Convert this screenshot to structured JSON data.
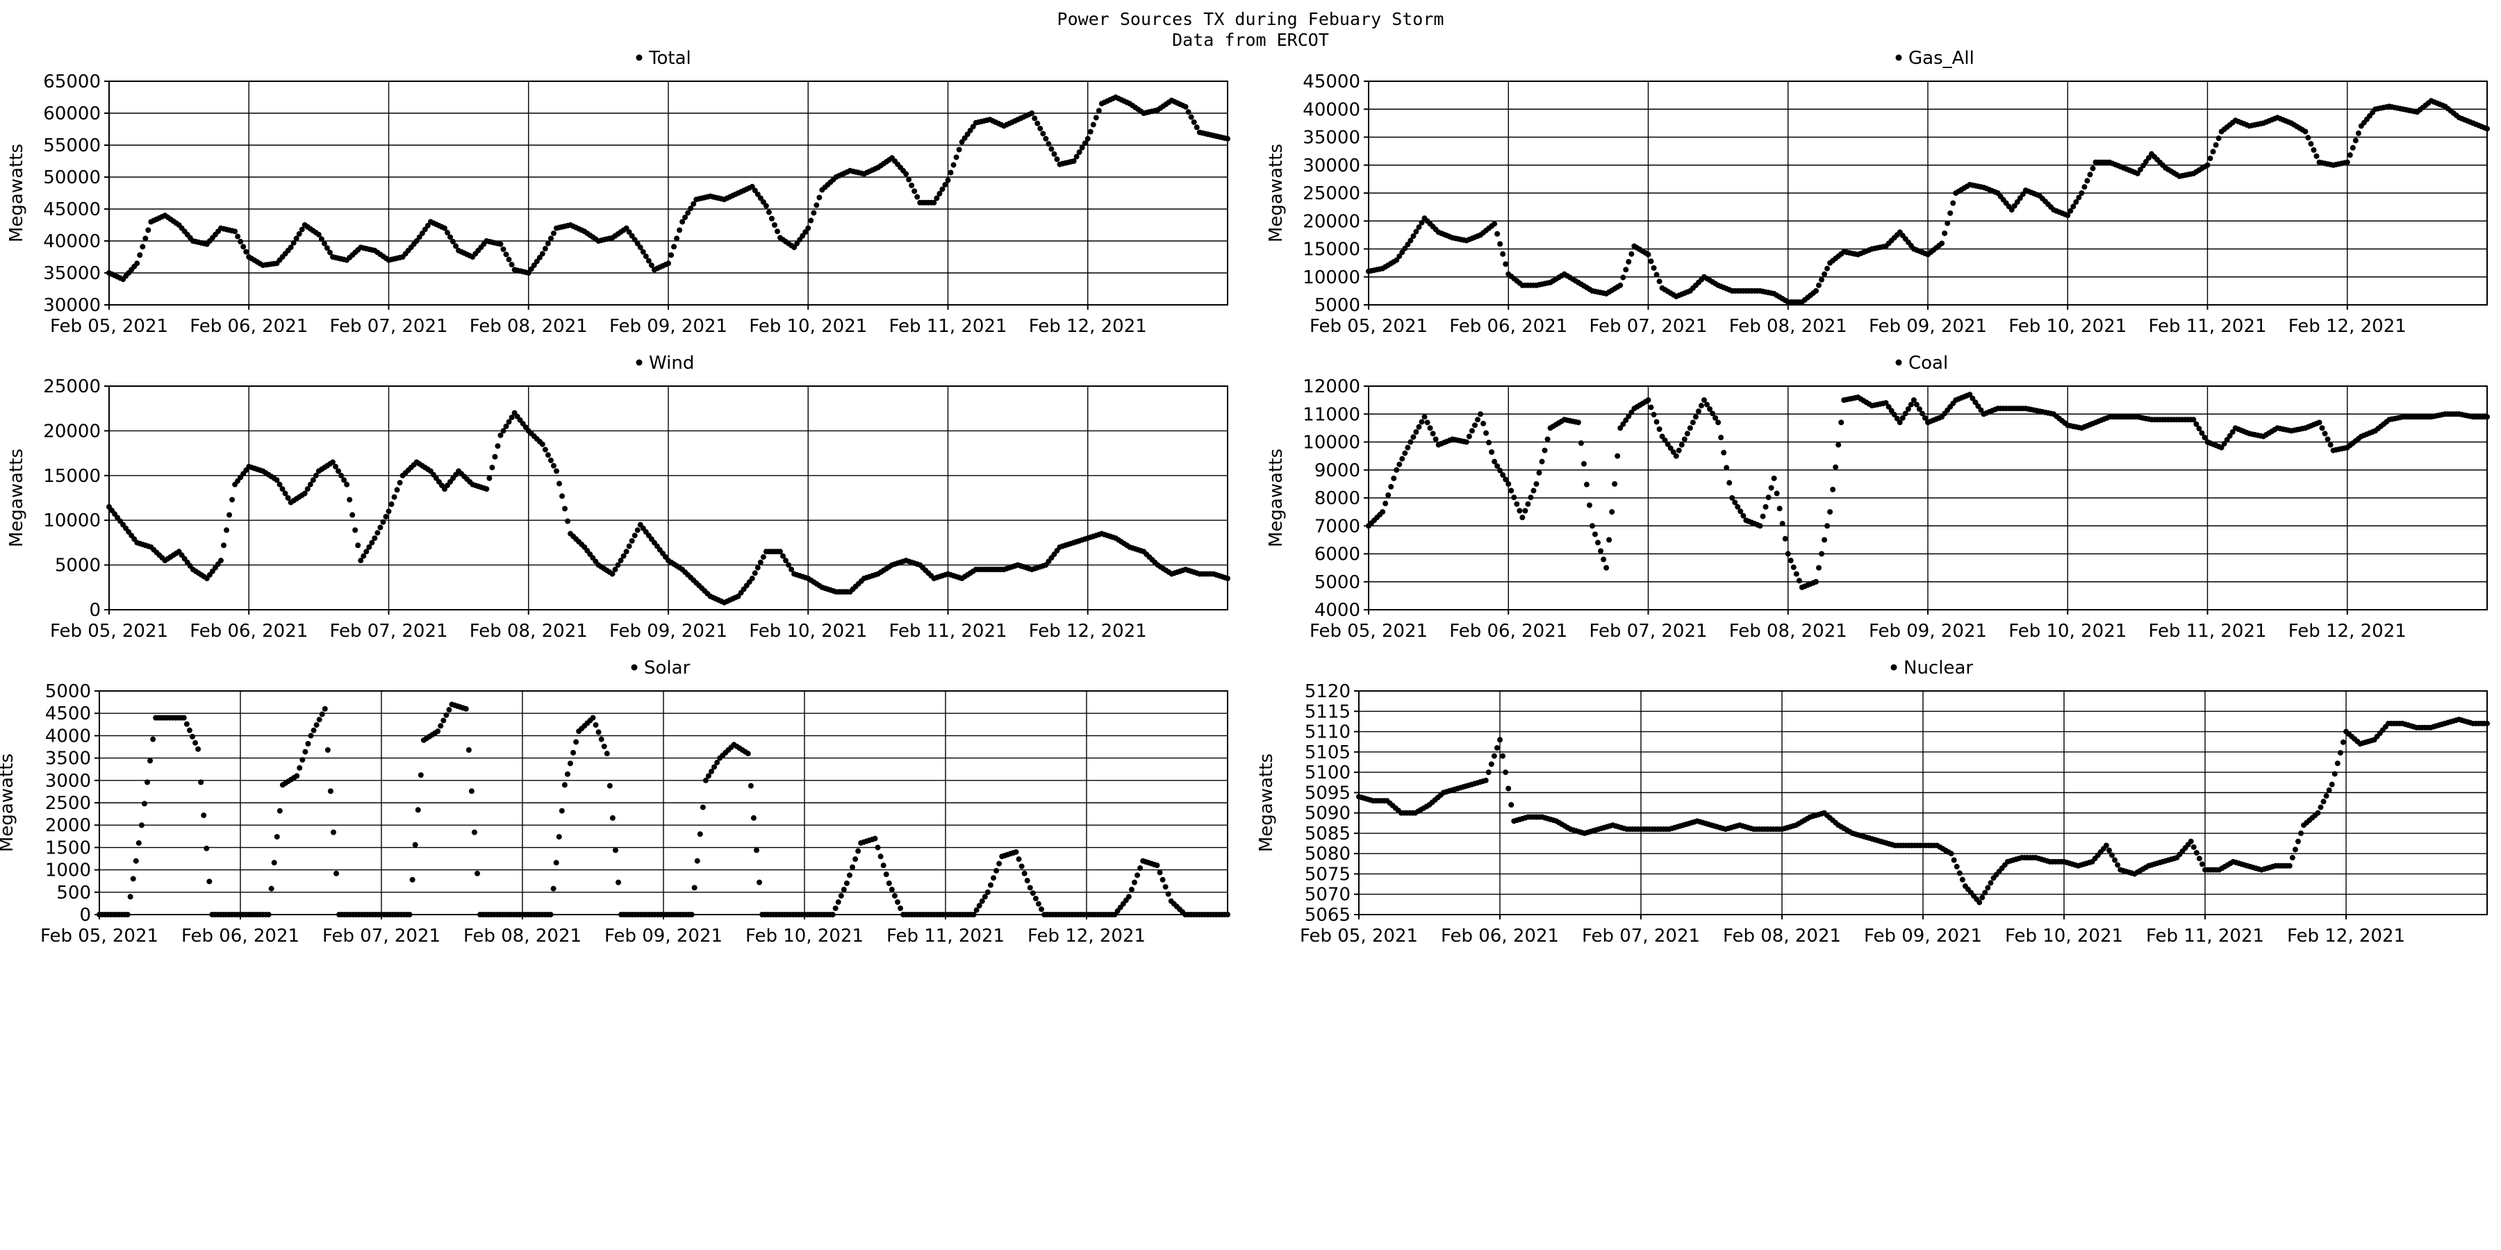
{
  "figure": {
    "title": "Power Sources TX during Febuary Storm",
    "subtitle": "Data from ERCOT"
  },
  "chart_data": [
    {
      "type": "scatter",
      "title": "Total",
      "legend": "Total",
      "ylabel": "Megawatts",
      "ylim": [
        30000,
        65000
      ],
      "yticks": [
        30000,
        35000,
        40000,
        45000,
        50000,
        55000,
        60000,
        65000
      ],
      "xlim": [
        0,
        8
      ],
      "xticks": [
        "Feb 05, 2021",
        "Feb 06, 2021",
        "Feb 07, 2021",
        "Feb 08, 2021",
        "Feb 09, 2021",
        "Feb 10, 2021",
        "Feb 11, 2021",
        "Feb 12, 2021"
      ],
      "grid": true,
      "x": [
        0,
        0.1,
        0.2,
        0.3,
        0.4,
        0.5,
        0.6,
        0.7,
        0.8,
        0.9,
        1.0,
        1.1,
        1.2,
        1.3,
        1.4,
        1.5,
        1.6,
        1.7,
        1.8,
        1.9,
        2.0,
        2.1,
        2.2,
        2.3,
        2.4,
        2.5,
        2.6,
        2.7,
        2.8,
        2.9,
        3.0,
        3.1,
        3.2,
        3.3,
        3.4,
        3.5,
        3.6,
        3.7,
        3.8,
        3.9,
        4.0,
        4.1,
        4.2,
        4.3,
        4.4,
        4.5,
        4.6,
        4.7,
        4.8,
        4.9,
        5.0,
        5.1,
        5.2,
        5.3,
        5.4,
        5.5,
        5.6,
        5.7,
        5.8,
        5.9,
        6.0,
        6.1,
        6.2,
        6.3,
        6.4,
        6.5,
        6.6,
        6.7,
        6.8,
        6.9,
        7.0,
        7.1,
        7.2,
        7.3,
        7.4,
        7.5,
        7.6,
        7.7,
        7.8,
        7.9,
        8.0
      ],
      "y": [
        35000,
        34000,
        36500,
        43000,
        44000,
        42500,
        40000,
        39500,
        42000,
        41500,
        37500,
        36200,
        36500,
        39000,
        42500,
        41000,
        37500,
        37000,
        39000,
        38500,
        37000,
        37500,
        40000,
        43000,
        42000,
        38500,
        37500,
        40000,
        39500,
        35500,
        35000,
        38000,
        42000,
        42500,
        41500,
        40000,
        40500,
        42000,
        39000,
        35500,
        36500,
        43000,
        46500,
        47000,
        46500,
        47500,
        48500,
        45500,
        40500,
        39000,
        42000,
        48000,
        50000,
        51000,
        50500,
        51500,
        53000,
        50500,
        46000,
        46000,
        49500,
        55500,
        58500,
        59000,
        58000,
        59000,
        60000,
        56000,
        52000,
        52500,
        56000,
        61500,
        62500,
        61500,
        60000,
        60500,
        62000,
        61000,
        57000,
        56500,
        56000
      ]
    },
    {
      "type": "scatter",
      "title": "Gas_All",
      "legend": "Gas_All",
      "ylabel": "Megawatts",
      "ylim": [
        5000,
        45000
      ],
      "yticks": [
        5000,
        10000,
        15000,
        20000,
        25000,
        30000,
        35000,
        40000,
        45000
      ],
      "xlim": [
        0,
        8
      ],
      "xticks": [
        "Feb 05, 2021",
        "Feb 06, 2021",
        "Feb 07, 2021",
        "Feb 08, 2021",
        "Feb 09, 2021",
        "Feb 10, 2021",
        "Feb 11, 2021",
        "Feb 12, 2021"
      ],
      "grid": true,
      "x": [
        0,
        0.1,
        0.2,
        0.3,
        0.4,
        0.5,
        0.6,
        0.7,
        0.8,
        0.9,
        1.0,
        1.1,
        1.2,
        1.3,
        1.4,
        1.5,
        1.6,
        1.7,
        1.8,
        1.9,
        2.0,
        2.1,
        2.2,
        2.3,
        2.4,
        2.5,
        2.6,
        2.7,
        2.8,
        2.9,
        3.0,
        3.1,
        3.2,
        3.3,
        3.4,
        3.5,
        3.6,
        3.7,
        3.8,
        3.9,
        4.0,
        4.1,
        4.2,
        4.3,
        4.4,
        4.5,
        4.6,
        4.7,
        4.8,
        4.9,
        5.0,
        5.1,
        5.2,
        5.3,
        5.4,
        5.5,
        5.6,
        5.7,
        5.8,
        5.9,
        6.0,
        6.1,
        6.2,
        6.3,
        6.4,
        6.5,
        6.6,
        6.7,
        6.8,
        6.9,
        7.0,
        7.1,
        7.2,
        7.3,
        7.4,
        7.5,
        7.6,
        7.7,
        7.8,
        7.9,
        8.0
      ],
      "y": [
        11000,
        11500,
        13000,
        16500,
        20500,
        18000,
        17000,
        16500,
        17500,
        19500,
        10500,
        8500,
        8500,
        9000,
        10500,
        9000,
        7500,
        7000,
        8500,
        15500,
        14000,
        8000,
        6500,
        7500,
        10000,
        8500,
        7500,
        7500,
        7500,
        7000,
        5500,
        5500,
        7500,
        12500,
        14500,
        14000,
        15000,
        15500,
        18000,
        15000,
        14000,
        16000,
        25000,
        26500,
        26000,
        25000,
        22000,
        25500,
        24500,
        22000,
        21000,
        25000,
        30500,
        30500,
        29500,
        28500,
        32000,
        29500,
        28000,
        28500,
        30000,
        36000,
        38000,
        37000,
        37500,
        38500,
        37500,
        36000,
        30500,
        30000,
        30500,
        37000,
        40000,
        40500,
        40000,
        39500,
        41500,
        40500,
        38500,
        37500,
        36500
      ]
    },
    {
      "type": "scatter",
      "title": "Wind",
      "legend": "Wind",
      "ylabel": "Megawatts",
      "ylim": [
        0,
        25000
      ],
      "yticks": [
        0,
        5000,
        10000,
        15000,
        20000,
        25000
      ],
      "xlim": [
        0,
        8
      ],
      "xticks": [
        "Feb 05, 2021",
        "Feb 06, 2021",
        "Feb 07, 2021",
        "Feb 08, 2021",
        "Feb 09, 2021",
        "Feb 10, 2021",
        "Feb 11, 2021",
        "Feb 12, 2021"
      ],
      "grid": true,
      "x": [
        0,
        0.1,
        0.2,
        0.3,
        0.4,
        0.5,
        0.6,
        0.7,
        0.8,
        0.9,
        1.0,
        1.1,
        1.2,
        1.3,
        1.4,
        1.5,
        1.6,
        1.7,
        1.8,
        1.9,
        2.0,
        2.1,
        2.2,
        2.3,
        2.4,
        2.5,
        2.6,
        2.7,
        2.8,
        2.9,
        3.0,
        3.1,
        3.2,
        3.3,
        3.4,
        3.5,
        3.6,
        3.7,
        3.8,
        3.9,
        4.0,
        4.1,
        4.2,
        4.3,
        4.4,
        4.5,
        4.6,
        4.7,
        4.8,
        4.9,
        5.0,
        5.1,
        5.2,
        5.3,
        5.4,
        5.5,
        5.6,
        5.7,
        5.8,
        5.9,
        6.0,
        6.1,
        6.2,
        6.3,
        6.4,
        6.5,
        6.6,
        6.7,
        6.8,
        6.9,
        7.0,
        7.1,
        7.2,
        7.3,
        7.4,
        7.5,
        7.6,
        7.7,
        7.8,
        7.9,
        8.0
      ],
      "y": [
        11500,
        9500,
        7500,
        7000,
        5500,
        6500,
        4500,
        3500,
        5500,
        14000,
        16000,
        15500,
        14500,
        12000,
        13000,
        15500,
        16500,
        14000,
        5500,
        8000,
        11000,
        15000,
        16500,
        15500,
        13500,
        15500,
        14000,
        13500,
        19500,
        22000,
        20000,
        18500,
        15500,
        8500,
        7000,
        5000,
        4000,
        6500,
        9500,
        7500,
        5500,
        4500,
        3000,
        1500,
        800,
        1500,
        3500,
        6500,
        6500,
        4000,
        3500,
        2500,
        2000,
        2000,
        3500,
        4000,
        5000,
        5500,
        5000,
        3500,
        4000,
        3500,
        4500,
        4500,
        4500,
        5000,
        4500,
        5000,
        7000,
        7500,
        8000,
        8500,
        8000,
        7000,
        6500,
        5000,
        4000,
        4500,
        4000,
        4000,
        3500
      ]
    },
    {
      "type": "scatter",
      "title": "Coal",
      "legend": "Coal",
      "ylabel": "Megawatts",
      "ylim": [
        4000,
        12000
      ],
      "yticks": [
        4000,
        5000,
        6000,
        7000,
        8000,
        9000,
        10000,
        11000,
        12000
      ],
      "xlim": [
        0,
        8
      ],
      "xticks": [
        "Feb 05, 2021",
        "Feb 06, 2021",
        "Feb 07, 2021",
        "Feb 08, 2021",
        "Feb 09, 2021",
        "Feb 10, 2021",
        "Feb 11, 2021",
        "Feb 12, 2021"
      ],
      "grid": true,
      "x": [
        0,
        0.1,
        0.2,
        0.3,
        0.4,
        0.5,
        0.6,
        0.7,
        0.8,
        0.9,
        1.0,
        1.1,
        1.2,
        1.3,
        1.4,
        1.5,
        1.6,
        1.7,
        1.8,
        1.9,
        2.0,
        2.1,
        2.2,
        2.3,
        2.4,
        2.5,
        2.6,
        2.7,
        2.8,
        2.9,
        3.0,
        3.1,
        3.2,
        3.3,
        3.4,
        3.5,
        3.6,
        3.7,
        3.8,
        3.9,
        4.0,
        4.1,
        4.2,
        4.3,
        4.4,
        4.5,
        4.6,
        4.7,
        4.8,
        4.9,
        5.0,
        5.1,
        5.2,
        5.3,
        5.4,
        5.5,
        5.6,
        5.7,
        5.8,
        5.9,
        6.0,
        6.1,
        6.2,
        6.3,
        6.4,
        6.5,
        6.6,
        6.7,
        6.8,
        6.9,
        7.0,
        7.1,
        7.2,
        7.3,
        7.4,
        7.5,
        7.6,
        7.7,
        7.8,
        7.9,
        8.0
      ],
      "y": [
        7000,
        7500,
        9000,
        10000,
        10900,
        9900,
        10100,
        10000,
        11000,
        9300,
        8500,
        7300,
        8500,
        10500,
        10800,
        10700,
        7000,
        5500,
        10500,
        11200,
        11500,
        10200,
        9500,
        10500,
        11500,
        10700,
        8000,
        7200,
        7000,
        8700,
        6000,
        4800,
        5000,
        7500,
        11500,
        11600,
        11300,
        11400,
        10700,
        11500,
        10700,
        10900,
        11500,
        11700,
        11000,
        11200,
        11200,
        11200,
        11100,
        11000,
        10600,
        10500,
        10700,
        10900,
        10900,
        10900,
        10800,
        10800,
        10800,
        10800,
        10000,
        9800,
        10500,
        10300,
        10200,
        10500,
        10400,
        10500,
        10700,
        9700,
        9800,
        10200,
        10400,
        10800,
        10900,
        10900,
        10900,
        11000,
        11000,
        10900,
        10900
      ]
    },
    {
      "type": "scatter",
      "title": "Solar",
      "legend": "Solar",
      "ylabel": "Megawatts",
      "ylim": [
        0,
        5000
      ],
      "yticks": [
        0,
        500,
        1000,
        1500,
        2000,
        2500,
        3000,
        3500,
        4000,
        4500,
        5000
      ],
      "xlim": [
        0,
        8
      ],
      "xticks": [
        "Feb 05, 2021",
        "Feb 06, 2021",
        "Feb 07, 2021",
        "Feb 08, 2021",
        "Feb 09, 2021",
        "Feb 10, 2021",
        "Feb 11, 2021",
        "Feb 12, 2021"
      ],
      "grid": true,
      "x": [
        0,
        0.1,
        0.2,
        0.3,
        0.4,
        0.5,
        0.6,
        0.7,
        0.8,
        0.9,
        1.0,
        1.1,
        1.2,
        1.3,
        1.4,
        1.5,
        1.6,
        1.7,
        1.8,
        1.9,
        2.0,
        2.1,
        2.2,
        2.3,
        2.4,
        2.5,
        2.6,
        2.7,
        2.8,
        2.9,
        3.0,
        3.1,
        3.2,
        3.3,
        3.4,
        3.5,
        3.6,
        3.7,
        3.8,
        3.9,
        4.0,
        4.1,
        4.2,
        4.3,
        4.4,
        4.5,
        4.6,
        4.7,
        4.8,
        4.9,
        5.0,
        5.1,
        5.2,
        5.3,
        5.4,
        5.5,
        5.6,
        5.7,
        5.8,
        5.9,
        6.0,
        6.1,
        6.2,
        6.3,
        6.4,
        6.5,
        6.6,
        6.7,
        6.8,
        6.9,
        7.0,
        7.1,
        7.2,
        7.3,
        7.4,
        7.5,
        7.6,
        7.7,
        7.8,
        7.9,
        8.0
      ],
      "y": [
        0,
        0,
        0,
        2000,
        4400,
        4400,
        4400,
        3700,
        0,
        0,
        0,
        0,
        0,
        2900,
        3100,
        4000,
        4600,
        0,
        0,
        0,
        0,
        0,
        0,
        3900,
        4100,
        4700,
        4600,
        0,
        0,
        0,
        0,
        0,
        0,
        2900,
        4100,
        4400,
        3600,
        0,
        0,
        0,
        0,
        0,
        0,
        3000,
        3500,
        3800,
        3600,
        0,
        0,
        0,
        0,
        0,
        0,
        700,
        1600,
        1700,
        700,
        0,
        0,
        0,
        0,
        0,
        0,
        500,
        1300,
        1400,
        600,
        0,
        0,
        0,
        0,
        0,
        0,
        400,
        1200,
        1100,
        300,
        0,
        0,
        0,
        0
      ]
    },
    {
      "type": "scatter",
      "title": "Nuclear",
      "legend": "Nuclear",
      "ylabel": "Megawatts",
      "ylim": [
        5065,
        5120
      ],
      "yticks": [
        5065,
        5070,
        5075,
        5080,
        5085,
        5090,
        5095,
        5100,
        5105,
        5110,
        5115,
        5120
      ],
      "xlim": [
        0,
        8
      ],
      "xticks": [
        "Feb 05, 2021",
        "Feb 06, 2021",
        "Feb 07, 2021",
        "Feb 08, 2021",
        "Feb 09, 2021",
        "Feb 10, 2021",
        "Feb 11, 2021",
        "Feb 12, 2021"
      ],
      "grid": true,
      "x": [
        0,
        0.1,
        0.2,
        0.3,
        0.4,
        0.5,
        0.6,
        0.7,
        0.8,
        0.9,
        1.0,
        1.1,
        1.2,
        1.3,
        1.4,
        1.5,
        1.6,
        1.7,
        1.8,
        1.9,
        2.0,
        2.1,
        2.2,
        2.3,
        2.4,
        2.5,
        2.6,
        2.7,
        2.8,
        2.9,
        3.0,
        3.1,
        3.2,
        3.3,
        3.4,
        3.5,
        3.6,
        3.7,
        3.8,
        3.9,
        4.0,
        4.1,
        4.2,
        4.3,
        4.4,
        4.5,
        4.6,
        4.7,
        4.8,
        4.9,
        5.0,
        5.1,
        5.2,
        5.3,
        5.4,
        5.5,
        5.6,
        5.7,
        5.8,
        5.9,
        6.0,
        6.1,
        6.2,
        6.3,
        6.4,
        6.5,
        6.6,
        6.7,
        6.8,
        6.9,
        7.0,
        7.1,
        7.2,
        7.3,
        7.4,
        7.5,
        7.6,
        7.7,
        7.8,
        7.9,
        8.0
      ],
      "y": [
        5094,
        5093,
        5093,
        5090,
        5090,
        5092,
        5095,
        5096,
        5097,
        5098,
        5108,
        5088,
        5089,
        5089,
        5088,
        5086,
        5085,
        5086,
        5087,
        5086,
        5086,
        5086,
        5086,
        5087,
        5088,
        5087,
        5086,
        5087,
        5086,
        5086,
        5086,
        5087,
        5089,
        5090,
        5087,
        5085,
        5084,
        5083,
        5082,
        5082,
        5082,
        5082,
        5080,
        5072,
        5068,
        5074,
        5078,
        5079,
        5079,
        5078,
        5078,
        5077,
        5078,
        5082,
        5076,
        5075,
        5077,
        5078,
        5079,
        5083,
        5076,
        5076,
        5078,
        5077,
        5076,
        5077,
        5077,
        5087,
        5090,
        5097,
        5110,
        5107,
        5108,
        5112,
        5112,
        5111,
        5111,
        5112,
        5113,
        5112,
        5112
      ]
    }
  ]
}
